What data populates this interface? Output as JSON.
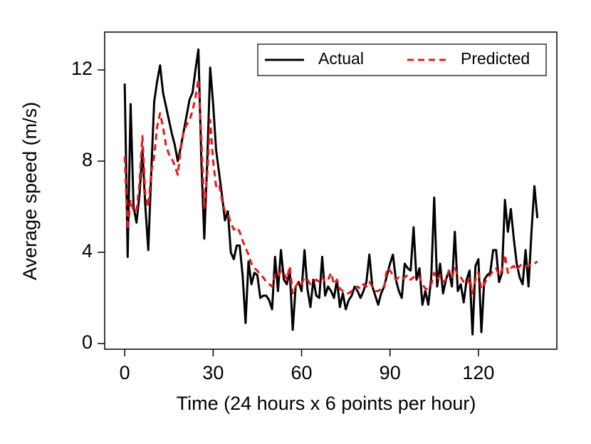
{
  "chart_data": {
    "type": "line",
    "xlabel": "Time (24 hours x 6 points per hour)",
    "ylabel": "Average speed (m/s)",
    "x": [
      0,
      1,
      2,
      3,
      4,
      5,
      6,
      7,
      8,
      9,
      10,
      11,
      12,
      13,
      14,
      15,
      16,
      17,
      18,
      19,
      20,
      21,
      22,
      23,
      24,
      25,
      26,
      27,
      28,
      29,
      30,
      31,
      32,
      33,
      34,
      35,
      36,
      37,
      38,
      39,
      40,
      41,
      42,
      43,
      44,
      45,
      46,
      47,
      48,
      49,
      50,
      51,
      52,
      53,
      54,
      55,
      56,
      57,
      58,
      59,
      60,
      61,
      62,
      63,
      64,
      65,
      66,
      67,
      68,
      69,
      70,
      71,
      72,
      73,
      74,
      75,
      76,
      77,
      78,
      79,
      80,
      81,
      82,
      83,
      84,
      85,
      86,
      87,
      88,
      89,
      90,
      91,
      92,
      93,
      94,
      95,
      96,
      97,
      98,
      99,
      100,
      101,
      102,
      103,
      104,
      105,
      106,
      107,
      108,
      109,
      110,
      111,
      112,
      113,
      114,
      115,
      116,
      117,
      118,
      119,
      120,
      121,
      122,
      123,
      124,
      125,
      126,
      127,
      128,
      129,
      130,
      131,
      132,
      133,
      134,
      135,
      136,
      137,
      138,
      139,
      140
    ],
    "series": [
      {
        "name": "Actual",
        "color": "#000000",
        "dash": "solid",
        "values": [
          11.4,
          3.8,
          10.5,
          6,
          5.3,
          6.5,
          8.5,
          6,
          4.1,
          7.5,
          10.6,
          11.5,
          12.2,
          11,
          10.4,
          9.8,
          9.2,
          8.7,
          8,
          8.6,
          9.3,
          10,
          10.7,
          11,
          12,
          12.9,
          8,
          4.6,
          8,
          12.1,
          10.5,
          8.5,
          7.5,
          6.5,
          5.4,
          5.8,
          4,
          3.7,
          4.3,
          4.3,
          3,
          0.9,
          3.6,
          2.6,
          3.1,
          3,
          2,
          2.1,
          2.1,
          1.9,
          1.5,
          3.8,
          2.3,
          4.1,
          2.8,
          2.6,
          3.2,
          0.6,
          2.5,
          2.7,
          2.3,
          4.1,
          2.4,
          1.6,
          2.8,
          2.1,
          2,
          3.8,
          2.1,
          2.5,
          2.3,
          2,
          2.8,
          1.6,
          2.2,
          1.5,
          1.9,
          2.1,
          2.5,
          2.3,
          2,
          2.3,
          2.7,
          3.9,
          2.5,
          2.1,
          1.7,
          2.2,
          2.5,
          3,
          3.5,
          3.9,
          2.8,
          2.3,
          2,
          3.5,
          3.3,
          3.2,
          5.1,
          2.8,
          3.3,
          1.7,
          2.3,
          1.7,
          2.9,
          6.4,
          2.5,
          3.5,
          2.2,
          2.8,
          3.2,
          2.5,
          4.9,
          2.3,
          2.6,
          1.8,
          2.8,
          3.2,
          0.4,
          3.4,
          3.7,
          0.5,
          2.8,
          3,
          3.1,
          4.1,
          4.1,
          2.7,
          3.1,
          6.3,
          4.9,
          5.9,
          4.6,
          3.5,
          2.9,
          2.6,
          4.1,
          2.5,
          4.9,
          6.9,
          5.5
        ]
      },
      {
        "name": "Predicted",
        "color": "#e41a1c",
        "dash": "dashed",
        "values": [
          8.2,
          5,
          6.3,
          5.8,
          5.8,
          7,
          9.1,
          6.5,
          6,
          7.5,
          8.2,
          9.5,
          10.1,
          9.5,
          8.7,
          8.3,
          8.1,
          7.8,
          7.4,
          8.5,
          9.3,
          9.6,
          9.8,
          10.2,
          10.8,
          11.6,
          9,
          5.9,
          7.4,
          9.8,
          8,
          6.9,
          7,
          6.3,
          5.8,
          5.7,
          5.3,
          5,
          5.1,
          4.9,
          4.5,
          4.2,
          3.9,
          3.5,
          3.3,
          3.2,
          3,
          2.9,
          2.7,
          2.6,
          2.5,
          3,
          2.9,
          3.2,
          3.1,
          2.8,
          3.4,
          2.2,
          2.5,
          2.7,
          2.6,
          2.9,
          2.8,
          2.6,
          2.7,
          2.8,
          2.7,
          2.9,
          2.7,
          2.8,
          3.1,
          2.6,
          2.8,
          2.4,
          2.3,
          2.2,
          2.2,
          2.3,
          2.3,
          2.5,
          2.4,
          2.6,
          2.5,
          2.7,
          2.5,
          2.3,
          2.3,
          2.4,
          2.4,
          3.3,
          3.2,
          3,
          2.8,
          2.9,
          2.8,
          2.9,
          3,
          2.8,
          2.9,
          3,
          2.9,
          2.6,
          2.4,
          2.4,
          2.6,
          3.1,
          2.8,
          3,
          2.7,
          2.8,
          3.2,
          2.9,
          3.3,
          3,
          2.9,
          2.7,
          2.6,
          2.9,
          2.2,
          2.8,
          3.1,
          2.4,
          2.6,
          2.9,
          3,
          3.2,
          3.3,
          3,
          3.2,
          3.9,
          3.1,
          3.3,
          3.4,
          3.2,
          3.4,
          3.5,
          3.4,
          3.4,
          3.5,
          3.5,
          3.6
        ]
      }
    ],
    "xlim": [
      -6.8,
      146.6
    ],
    "xticks": [
      0,
      30,
      60,
      90,
      120
    ],
    "ylim": [
      -0.25,
      13.66
    ],
    "yticks": [
      0,
      4,
      8,
      12
    ],
    "grid": false,
    "legend": "upper right"
  }
}
